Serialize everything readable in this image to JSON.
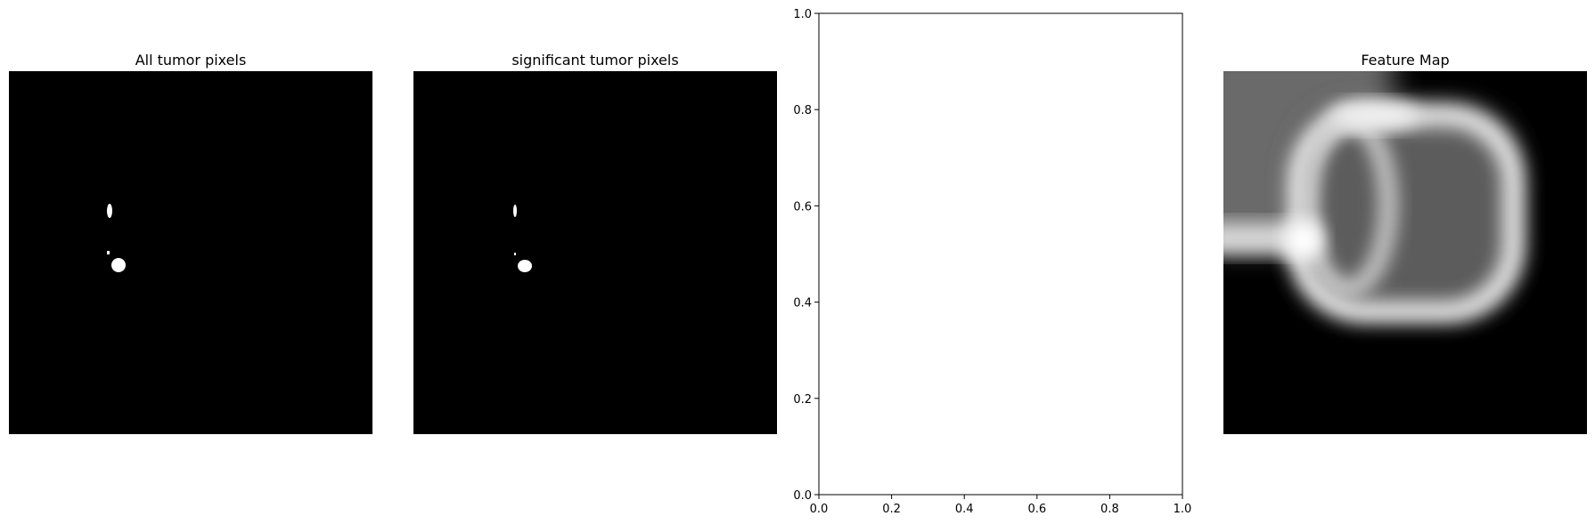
{
  "figure": {
    "panels": [
      {
        "title": "All tumor pixels",
        "kind": "image"
      },
      {
        "title": "significant tumor pixels",
        "kind": "image"
      },
      {
        "title": "",
        "kind": "empty-axes"
      },
      {
        "title": "Feature Map",
        "kind": "image"
      }
    ]
  },
  "chart_data": [
    {
      "type": "heatmap",
      "title": "All tumor pixels",
      "colormap": "gray",
      "axes_visible": false
    },
    {
      "type": "heatmap",
      "title": "significant tumor pixels",
      "colormap": "gray",
      "axes_visible": false
    },
    {
      "type": "line",
      "title": "",
      "series": [],
      "xlim": [
        0.0,
        1.0
      ],
      "ylim": [
        0.0,
        1.0
      ],
      "xticks": [
        "0.0",
        "0.2",
        "0.4",
        "0.6",
        "0.8",
        "1.0"
      ],
      "yticks": [
        "0.0",
        "0.2",
        "0.4",
        "0.6",
        "0.8",
        "1.0"
      ],
      "grid": false
    },
    {
      "type": "heatmap",
      "title": "Feature Map",
      "colormap": "gray",
      "axes_visible": false
    }
  ]
}
